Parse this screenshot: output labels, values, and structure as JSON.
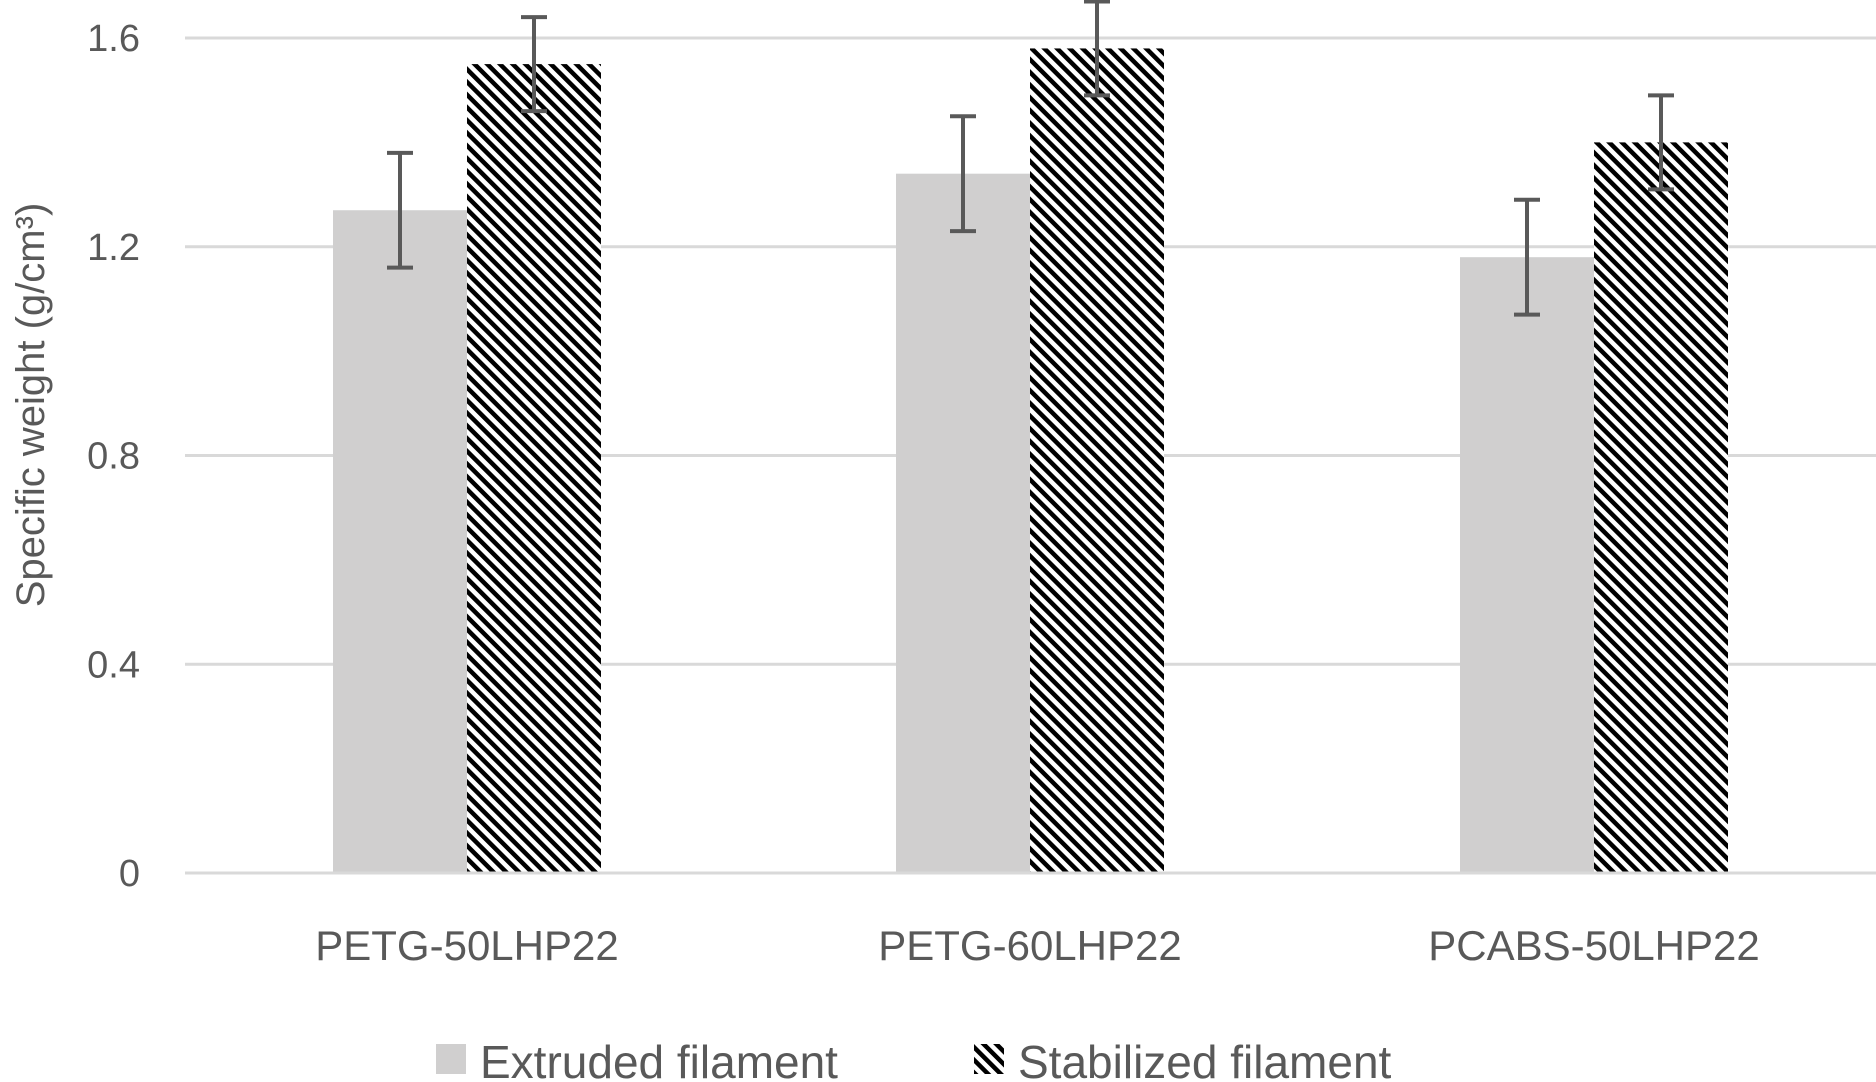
{
  "chart_data": {
    "type": "bar",
    "categories": [
      "PETG-50LHP22",
      "PETG-60LHP22",
      "PCABS-50LHP22"
    ],
    "series": [
      {
        "name": "Extruded filament",
        "values": [
          1.27,
          1.34,
          1.18
        ],
        "errors": [
          0.11,
          0.11,
          0.11
        ],
        "pattern": "solid"
      },
      {
        "name": "Stabilized filament",
        "values": [
          1.55,
          1.58,
          1.4
        ],
        "errors": [
          0.09,
          0.09,
          0.09
        ],
        "pattern": "hatched"
      }
    ],
    "title": "",
    "xlabel": "",
    "ylabel": "Specific weight (g/cm³)",
    "ylim": [
      0,
      1.6
    ],
    "yticks": [
      "0",
      "0.4",
      "0.8",
      "1.2",
      "1.6"
    ],
    "grid": true,
    "legend_position": "bottom",
    "colors": {
      "extruded": "#d0cfcf",
      "stabilized_stripe": "#000000",
      "stabilized_bg": "#ffffff",
      "grid": "#d9d9d9",
      "error_bar": "#595959",
      "text": "#595959"
    }
  }
}
